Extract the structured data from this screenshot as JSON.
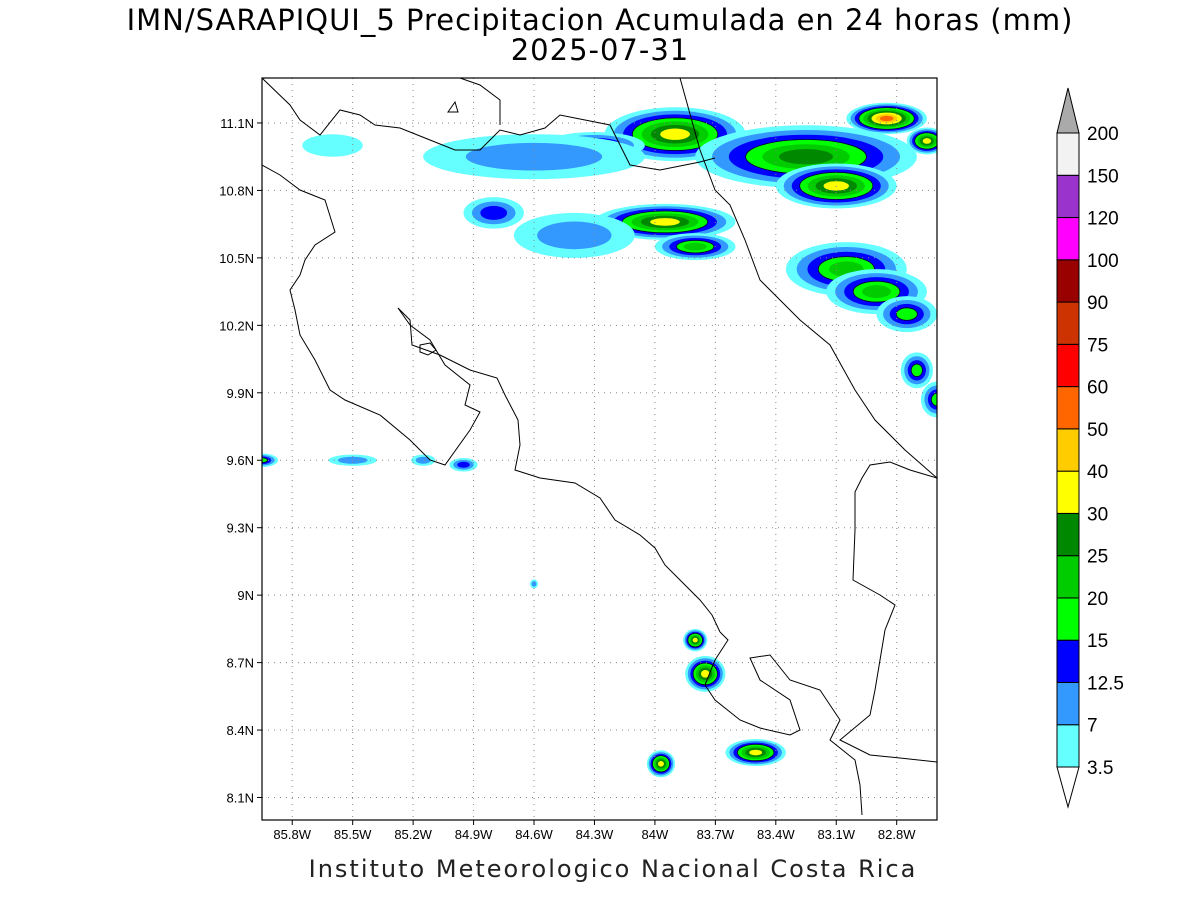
{
  "title": {
    "line1": "IMN/SARAPIQUI_5 Precipitacion Acumulada en 24 horas (mm)",
    "line2": "2025-07-31"
  },
  "credit": "Instituto Meteorologico Nacional Costa Rica",
  "axes": {
    "lon_ticks": [
      {
        "value": -85.8,
        "label": "85.8W"
      },
      {
        "value": -85.5,
        "label": "85.5W"
      },
      {
        "value": -85.2,
        "label": "85.2W"
      },
      {
        "value": -84.9,
        "label": "84.9W"
      },
      {
        "value": -84.6,
        "label": "84.6W"
      },
      {
        "value": -84.3,
        "label": "84.3W"
      },
      {
        "value": -84.0,
        "label": "84W"
      },
      {
        "value": -83.7,
        "label": "83.7W"
      },
      {
        "value": -83.4,
        "label": "83.4W"
      },
      {
        "value": -83.1,
        "label": "83.1W"
      },
      {
        "value": -82.8,
        "label": "82.8W"
      }
    ],
    "lat_ticks": [
      {
        "value": 11.1,
        "label": "11.1N"
      },
      {
        "value": 10.8,
        "label": "10.8N"
      },
      {
        "value": 10.5,
        "label": "10.5N"
      },
      {
        "value": 10.2,
        "label": "10.2N"
      },
      {
        "value": 9.9,
        "label": "9.9N"
      },
      {
        "value": 9.6,
        "label": "9.6N"
      },
      {
        "value": 9.3,
        "label": "9.3N"
      },
      {
        "value": 9.0,
        "label": "9N"
      },
      {
        "value": 8.7,
        "label": "8.7N"
      },
      {
        "value": 8.4,
        "label": "8.4N"
      },
      {
        "value": 8.1,
        "label": "8.1N"
      }
    ],
    "lon_range": [
      -85.95,
      -82.6
    ],
    "lat_range": [
      8.0,
      11.3
    ],
    "grid": true
  },
  "colorbar": {
    "units": "mm",
    "levels": [
      {
        "label": "3.5",
        "color": "#66ffff"
      },
      {
        "label": "7",
        "color": "#3399ff"
      },
      {
        "label": "12.5",
        "color": "#0000ff"
      },
      {
        "label": "15",
        "color": "#00ff00"
      },
      {
        "label": "20",
        "color": "#00cc00"
      },
      {
        "label": "25",
        "color": "#008800"
      },
      {
        "label": "30",
        "color": "#ffff00"
      },
      {
        "label": "40",
        "color": "#ffcc00"
      },
      {
        "label": "50",
        "color": "#ff6600"
      },
      {
        "label": "60",
        "color": "#ff0000"
      },
      {
        "label": "75",
        "color": "#cc3300"
      },
      {
        "label": "90",
        "color": "#990000"
      },
      {
        "label": "100",
        "color": "#ff00ff"
      },
      {
        "label": "120",
        "color": "#9933cc"
      },
      {
        "label": "150",
        "color": "#f2f2f2"
      },
      {
        "label": "200",
        "color": "#aaaaaa"
      }
    ]
  },
  "precip_cells": [
    {
      "lon": -83.9,
      "lat": 11.05,
      "rx": 0.35,
      "ry": 0.12,
      "max": 35
    },
    {
      "lon": -84.3,
      "lat": 11.0,
      "rx": 0.25,
      "ry": 0.06,
      "max": 15
    },
    {
      "lon": -83.25,
      "lat": 10.95,
      "rx": 0.55,
      "ry": 0.14,
      "max": 25
    },
    {
      "lon": -82.85,
      "lat": 11.12,
      "rx": 0.2,
      "ry": 0.07,
      "max": 50
    },
    {
      "lon": -82.65,
      "lat": 11.02,
      "rx": 0.1,
      "ry": 0.06,
      "max": 30
    },
    {
      "lon": -83.95,
      "lat": 10.66,
      "rx": 0.35,
      "ry": 0.08,
      "max": 35
    },
    {
      "lon": -83.8,
      "lat": 10.55,
      "rx": 0.2,
      "ry": 0.06,
      "max": 20
    },
    {
      "lon": -83.1,
      "lat": 10.82,
      "rx": 0.3,
      "ry": 0.1,
      "max": 30
    },
    {
      "lon": -83.05,
      "lat": 10.45,
      "rx": 0.3,
      "ry": 0.12,
      "max": 20
    },
    {
      "lon": -82.9,
      "lat": 10.35,
      "rx": 0.25,
      "ry": 0.1,
      "max": 20
    },
    {
      "lon": -82.75,
      "lat": 10.25,
      "rx": 0.15,
      "ry": 0.08,
      "max": 15
    },
    {
      "lon": -82.7,
      "lat": 10.0,
      "rx": 0.08,
      "ry": 0.08,
      "max": 15
    },
    {
      "lon": -82.6,
      "lat": 9.87,
      "rx": 0.08,
      "ry": 0.08,
      "max": 15
    },
    {
      "lon": -84.6,
      "lat": 10.95,
      "rx": 0.55,
      "ry": 0.1,
      "max": 7
    },
    {
      "lon": -84.8,
      "lat": 10.7,
      "rx": 0.15,
      "ry": 0.07,
      "max": 12.5
    },
    {
      "lon": -84.4,
      "lat": 10.6,
      "rx": 0.3,
      "ry": 0.1,
      "max": 7
    },
    {
      "lon": -85.6,
      "lat": 11.0,
      "rx": 0.15,
      "ry": 0.05,
      "max": 3.5
    },
    {
      "lon": -85.95,
      "lat": 9.6,
      "rx": 0.08,
      "ry": 0.03,
      "max": 15
    },
    {
      "lon": -85.5,
      "lat": 9.6,
      "rx": 0.12,
      "ry": 0.025,
      "max": 7
    },
    {
      "lon": -85.15,
      "lat": 9.6,
      "rx": 0.06,
      "ry": 0.025,
      "max": 7
    },
    {
      "lon": -84.95,
      "lat": 9.58,
      "rx": 0.07,
      "ry": 0.03,
      "max": 12.5
    },
    {
      "lon": -83.8,
      "lat": 8.8,
      "rx": 0.06,
      "ry": 0.05,
      "max": 30
    },
    {
      "lon": -83.75,
      "lat": 8.65,
      "rx": 0.1,
      "ry": 0.08,
      "max": 30
    },
    {
      "lon": -83.97,
      "lat": 8.25,
      "rx": 0.07,
      "ry": 0.06,
      "max": 30
    },
    {
      "lon": -83.5,
      "lat": 8.3,
      "rx": 0.15,
      "ry": 0.06,
      "max": 30
    },
    {
      "lon": -84.6,
      "lat": 9.05,
      "rx": 0.02,
      "ry": 0.02,
      "max": 7
    }
  ]
}
